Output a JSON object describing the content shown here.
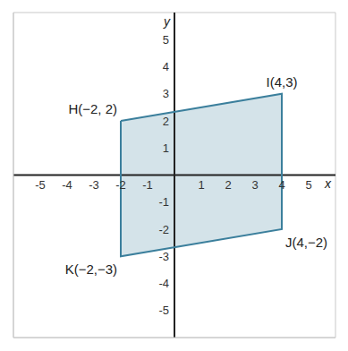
{
  "chart_data": {
    "type": "polygon",
    "x_label": "x",
    "y_label": "y",
    "xlim": [
      -6,
      6
    ],
    "ylim": [
      -6,
      6
    ],
    "xticks": [
      -5,
      -4,
      -3,
      -2,
      -1,
      1,
      2,
      3,
      4,
      5
    ],
    "yticks": [
      -5,
      -4,
      -3,
      -2,
      -1,
      1,
      2,
      3,
      4,
      5
    ],
    "grid": true,
    "color": "#3b7f9c",
    "points": [
      {
        "label": "H(−2, 2)",
        "x": -2,
        "y": 2
      },
      {
        "label": "I(4,3)",
        "x": 4,
        "y": 3
      },
      {
        "label": "J(4,−2)",
        "x": 4,
        "y": -2
      },
      {
        "label": "K(−2,−3)",
        "x": -2,
        "y": -3
      }
    ]
  }
}
